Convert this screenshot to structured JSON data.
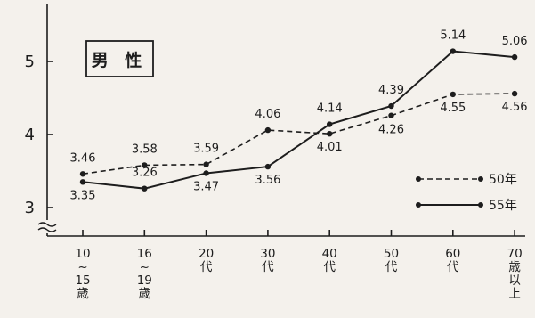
{
  "chart_data": {
    "type": "line",
    "title": "男 性",
    "xlabel": "",
    "ylabel": "",
    "ylim": [
      2.85,
      5.5
    ],
    "yticks": [
      3,
      4,
      5
    ],
    "y_axis_break": true,
    "categories": [
      [
        "10",
        "~",
        "15",
        "歳"
      ],
      [
        "16",
        "~",
        "19",
        "歳"
      ],
      [
        "20",
        "代"
      ],
      [
        "30",
        "代"
      ],
      [
        "40",
        "代"
      ],
      [
        "50",
        "代"
      ],
      [
        "60",
        "代"
      ],
      [
        "70",
        "歳",
        "以",
        "上"
      ]
    ],
    "legend_position": "bottom-right",
    "series": [
      {
        "name": "50年",
        "style": "dashed",
        "color": "#1d1d1d",
        "values": [
          3.46,
          3.58,
          3.59,
          4.06,
          4.01,
          4.26,
          4.55,
          4.56
        ],
        "labels": [
          "3.46",
          "3.58",
          "3.59",
          "4.06",
          "4.01",
          "4.26",
          "4.55",
          "4.56"
        ]
      },
      {
        "name": "55年",
        "style": "solid",
        "color": "#1d1d1d",
        "values": [
          3.35,
          3.26,
          3.47,
          3.56,
          4.14,
          4.39,
          5.14,
          5.06
        ],
        "labels": [
          "3.35",
          "3.26",
          "3.47",
          "3.56",
          "4.14",
          "4.39",
          "5.14",
          "5.06"
        ]
      }
    ]
  }
}
